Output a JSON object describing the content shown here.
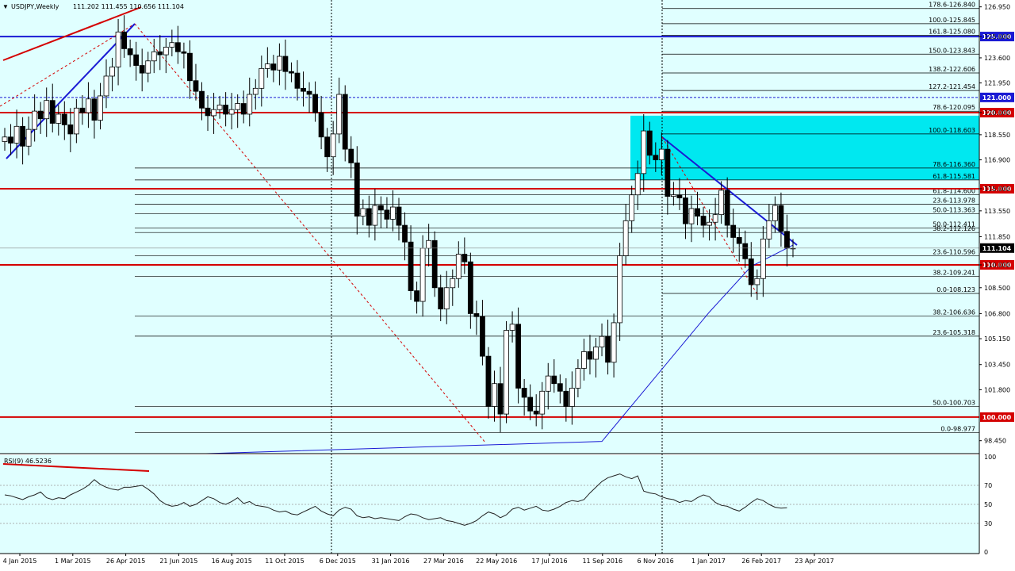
{
  "header": {
    "symbol_tf": "USDJPY,Weekly",
    "ohlc": "111.202 111.455 110.656 111.104"
  },
  "rsi": {
    "label": "RSI(9) 46.5236",
    "levels": [
      "100",
      "70",
      "50",
      "30",
      "0"
    ]
  },
  "colors": {
    "background": "#e0ffff",
    "panel_bg": "#e0ffff",
    "grid_line": "#000000",
    "red_level": "#d40000",
    "blue_trend": "#1a1ad4",
    "fib_box": "#00e8f0",
    "bull_candle": "#ffffff",
    "bear_candle": "#000000",
    "rsi_line": "#222222"
  },
  "chart_data": {
    "type": "candlestick",
    "symbol": "USDJPY",
    "timeframe": "Weekly",
    "last_price": "111.104",
    "y_ticks": [
      "126.950",
      "125.000",
      "123.600",
      "121.950",
      "120.000",
      "118.550",
      "116.900",
      "115.000",
      "113.550",
      "111.850",
      "110.000",
      "108.500",
      "106.800",
      "105.150",
      "103.450",
      "101.800",
      "98.450"
    ],
    "x_ticks": [
      "4 Jan 2015",
      "1 Mar 2015",
      "26 Apr 2015",
      "21 Jun 2015",
      "16 Aug 2015",
      "11 Oct 2015",
      "6 Dec 2015",
      "31 Jan 2016",
      "27 Mar 2016",
      "22 May 2016",
      "17 Jul 2016",
      "11 Sep 2016",
      "6 Nov 2016",
      "1 Jan 2017",
      "26 Feb 2017",
      "23 Apr 2017"
    ],
    "ylim": [
      97.6,
      127.4
    ],
    "horizontal_levels": [
      {
        "value": 125.0,
        "label": "125.000",
        "color": "blue"
      },
      {
        "value": 121.0,
        "label": "121.000",
        "color": "blue"
      },
      {
        "value": 120.0,
        "label": "120.000",
        "color": "red"
      },
      {
        "value": 115.0,
        "label": "115.000",
        "color": "red"
      },
      {
        "value": 110.0,
        "label": "110.000",
        "color": "red"
      },
      {
        "value": 100.0,
        "label": "100.000",
        "color": "red"
      },
      {
        "value": 111.104,
        "label": "111.104",
        "color": "black"
      }
    ],
    "fib_labels": [
      {
        "value": 126.84,
        "text": "178.6-126.840"
      },
      {
        "value": 125.845,
        "text": "100.0-125.845"
      },
      {
        "value": 125.08,
        "text": "161.8-125.080"
      },
      {
        "value": 123.843,
        "text": "150.0-123.843"
      },
      {
        "value": 122.606,
        "text": "138.2-122.606"
      },
      {
        "value": 121.454,
        "text": "127.2-121.454"
      },
      {
        "value": 120.095,
        "text": "78.6-120.095"
      },
      {
        "value": 118.603,
        "text": "100.0-118.603"
      },
      {
        "value": 116.36,
        "text": "78.6-116.360"
      },
      {
        "value": 115.581,
        "text": "61.8-115.581"
      },
      {
        "value": 114.6,
        "text": "61.8-114.600"
      },
      {
        "value": 113.978,
        "text": "23.6-113.978"
      },
      {
        "value": 113.363,
        "text": "50.0-113.363"
      },
      {
        "value": 112.411,
        "text": "50.0-112.411"
      },
      {
        "value": 112.126,
        "text": "38.2-112.126"
      },
      {
        "value": 110.596,
        "text": "23.6-110.596"
      },
      {
        "value": 109.241,
        "text": "38.2-109.241"
      },
      {
        "value": 108.123,
        "text": "0.0-108.123"
      },
      {
        "value": 106.636,
        "text": "38.2-106.636"
      },
      {
        "value": 105.318,
        "text": "23.6-105.318"
      },
      {
        "value": 100.703,
        "text": "50.0-100.703"
      },
      {
        "value": 98.977,
        "text": "0.0-98.977"
      }
    ],
    "fib_zone": {
      "from": 115.581,
      "to": 119.8
    },
    "closes": [
      118.4,
      118.0,
      119.1,
      117.8,
      118.9,
      120.1,
      119.6,
      120.8,
      119.3,
      119.9,
      119.2,
      118.6,
      120.3,
      120.0,
      120.9,
      119.5,
      121.1,
      122.4,
      123.0,
      125.3,
      124.2,
      123.8,
      123.1,
      122.6,
      123.4,
      124.0,
      123.8,
      124.3,
      124.6,
      124.0,
      123.9,
      122.1,
      121.4,
      120.3,
      119.8,
      120.2,
      120.5,
      119.9,
      120.2,
      120.6,
      119.9,
      121.2,
      121.6,
      122.9,
      123.2,
      122.8,
      123.7,
      122.7,
      122.6,
      121.6,
      121.4,
      121.2,
      120.0,
      118.4,
      117.1,
      118.6,
      121.2,
      117.6,
      116.7,
      113.2,
      113.7,
      112.6,
      113.9,
      113.6,
      113.0,
      113.8,
      112.6,
      111.5,
      108.3,
      107.6,
      111.1,
      111.6,
      108.5,
      107.1,
      108.5,
      109.1,
      110.7,
      110.2,
      106.8,
      106.6,
      104.0,
      100.7,
      102.2,
      100.2,
      105.7,
      106.1,
      101.9,
      101.3,
      100.4,
      100.2,
      101.7,
      102.7,
      102.2,
      101.7,
      100.7,
      101.9,
      103.2,
      104.3,
      103.8,
      104.6,
      105.3,
      103.6,
      106.2,
      110.6,
      112.9,
      114.6,
      116.0,
      118.8,
      117.2,
      116.9,
      117.6,
      114.5,
      114.6,
      114.4,
      112.7,
      113.7,
      113.2,
      112.6,
      112.8,
      113.3,
      114.9,
      112.6,
      111.8,
      111.4,
      110.4,
      108.7,
      109.1,
      111.7,
      112.9,
      113.9,
      112.2,
      111.1,
      111.1
    ],
    "ma_points": [
      [
        100,
        98.4
      ],
      [
        118,
        106.9
      ],
      [
        125,
        109.9
      ],
      [
        132,
        111.3
      ]
    ],
    "rsi_values": [
      60,
      59,
      57,
      55,
      58,
      60,
      63,
      57,
      55,
      57,
      56,
      60,
      63,
      66,
      70,
      76,
      71,
      68,
      66,
      65,
      68,
      68,
      69,
      70,
      66,
      61,
      54,
      50,
      48,
      49,
      52,
      48,
      50,
      54,
      58,
      56,
      52,
      50,
      53,
      57,
      51,
      53,
      49,
      48,
      47,
      44,
      42,
      43,
      40,
      39,
      42,
      45,
      48,
      43,
      40,
      38,
      44,
      47,
      45,
      38,
      36,
      37,
      35,
      36,
      35,
      34,
      33,
      37,
      40,
      39,
      36,
      34,
      35,
      36,
      33,
      32,
      30,
      28,
      30,
      33,
      38,
      42,
      40,
      36,
      39,
      45,
      47,
      44,
      46,
      48,
      44,
      43,
      45,
      48,
      52,
      54,
      53,
      55,
      62,
      68,
      74,
      78,
      80,
      82,
      79,
      77,
      80,
      64,
      62,
      61,
      58,
      56,
      55,
      52,
      54,
      53,
      57,
      60,
      58,
      52,
      49,
      48,
      45,
      43,
      47,
      52,
      56,
      54,
      50,
      47,
      46,
      46.5
    ],
    "rsi_ylim": [
      0,
      100
    ],
    "rsi_levels": [
      70,
      50,
      30
    ],
    "grid": false,
    "legend": "none"
  }
}
